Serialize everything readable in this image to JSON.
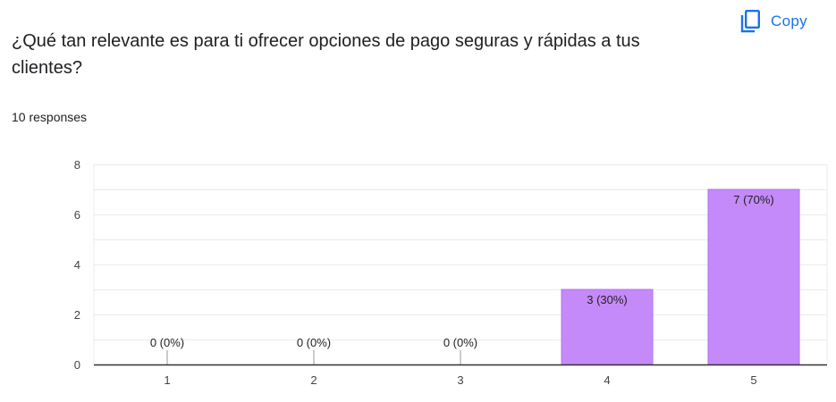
{
  "question": {
    "title": "¿Qué tan relevante es para ti ofrecer opciones de pago seguras y rápidas a tus clientes?",
    "responses": "10 responses"
  },
  "toolbar": {
    "copy_label": "Copy",
    "copy_icon": "copy-icon"
  },
  "colors": {
    "bar": "#c58af9",
    "bar_stroke": "#b073f0",
    "grid": "#ebebeb",
    "axis": "#333333",
    "copy": "#1a73e8"
  },
  "chart_data": {
    "type": "bar",
    "categories": [
      "1",
      "2",
      "3",
      "4",
      "5"
    ],
    "values": [
      0,
      0,
      0,
      3,
      7
    ],
    "data_labels": [
      "0 (0%)",
      "0 (0%)",
      "0 (0%)",
      "3 (30%)",
      "7 (70%)"
    ],
    "yticks": [
      "0",
      "2",
      "4",
      "6",
      "8"
    ],
    "ylim": [
      0,
      8
    ],
    "grid": true,
    "legend": "none"
  }
}
